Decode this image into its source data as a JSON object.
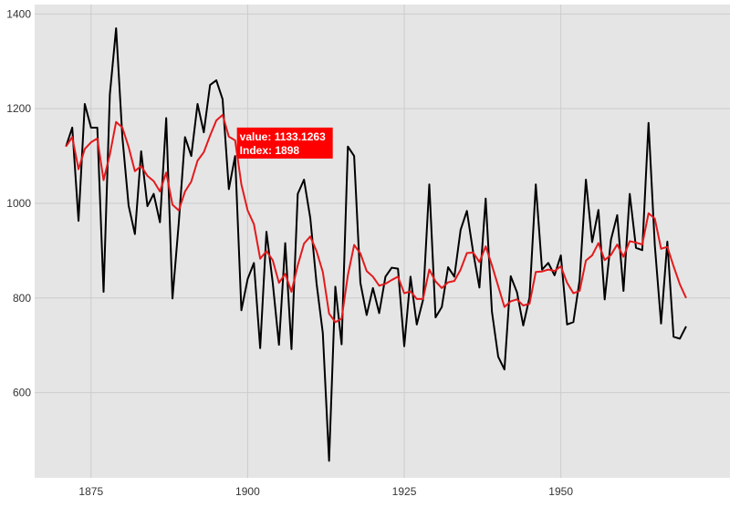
{
  "chart_data": {
    "type": "line",
    "title": "",
    "xlabel": "",
    "ylabel": "",
    "xlim": [
      1866,
      1977
    ],
    "ylim": [
      420,
      1420
    ],
    "x_ticks": [
      1875,
      1900,
      1925,
      1950
    ],
    "y_ticks": [
      600,
      800,
      1000,
      1200,
      1400
    ],
    "x_tick_labels": [
      "1875",
      "1900",
      "1925",
      "1950"
    ],
    "y_tick_labels": [
      "600",
      "800",
      "1000",
      "1200",
      "1400"
    ],
    "grid": true,
    "series": [
      {
        "color": "#000000",
        "x": [
          1871,
          1872,
          1873,
          1874,
          1875,
          1876,
          1877,
          1878,
          1879,
          1880,
          1881,
          1882,
          1883,
          1884,
          1885,
          1886,
          1887,
          1888,
          1889,
          1890,
          1891,
          1892,
          1893,
          1894,
          1895,
          1896,
          1897,
          1898,
          1899,
          1900,
          1901,
          1902,
          1903,
          1904,
          1905,
          1906,
          1907,
          1908,
          1909,
          1910,
          1911,
          1912,
          1913,
          1914,
          1915,
          1916,
          1917,
          1918,
          1919,
          1920,
          1921,
          1922,
          1923,
          1924,
          1925,
          1926,
          1927,
          1928,
          1929,
          1930,
          1931,
          1932,
          1933,
          1934,
          1935,
          1936,
          1937,
          1938,
          1939,
          1940,
          1941,
          1942,
          1943,
          1944,
          1945,
          1946,
          1947,
          1948,
          1949,
          1950,
          1951,
          1952,
          1953,
          1954,
          1955,
          1956,
          1957,
          1958,
          1959,
          1960,
          1961,
          1962,
          1963,
          1964,
          1965,
          1966,
          1967,
          1968,
          1969,
          1970
        ],
        "values": [
          1120,
          1160,
          963,
          1210,
          1160,
          1160,
          813,
          1230,
          1370,
          1140,
          995,
          935,
          1110,
          994,
          1020,
          960,
          1180,
          799,
          958,
          1140,
          1100,
          1210,
          1150,
          1250,
          1260,
          1220,
          1030,
          1100,
          774,
          840,
          874,
          694,
          940,
          833,
          701,
          916,
          692,
          1020,
          1050,
          969,
          831,
          726,
          456,
          824,
          702,
          1120,
          1100,
          832,
          764,
          821,
          768,
          845,
          864,
          862,
          698,
          845,
          744,
          796,
          1040,
          759,
          781,
          865,
          845,
          944,
          984,
          897,
          822,
          1010,
          771,
          676,
          649,
          846,
          812,
          742,
          801,
          1040,
          860,
          874,
          848,
          890,
          744,
          749,
          838,
          1050,
          918,
          986,
          797,
          923,
          975,
          815,
          1020,
          906,
          901,
          1170,
          912,
          746,
          919,
          718,
          714,
          740
        ]
      },
      {
        "color": "#e31a1c",
        "x": [
          1871,
          1872,
          1873,
          1874,
          1875,
          1876,
          1877,
          1878,
          1879,
          1880,
          1881,
          1882,
          1883,
          1884,
          1885,
          1886,
          1887,
          1888,
          1889,
          1890,
          1891,
          1892,
          1893,
          1894,
          1895,
          1896,
          1897,
          1898,
          1899,
          1900,
          1901,
          1902,
          1903,
          1904,
          1905,
          1906,
          1907,
          1908,
          1909,
          1910,
          1911,
          1912,
          1913,
          1914,
          1915,
          1916,
          1917,
          1918,
          1919,
          1920,
          1921,
          1922,
          1923,
          1924,
          1925,
          1926,
          1927,
          1928,
          1929,
          1930,
          1931,
          1932,
          1933,
          1934,
          1935,
          1936,
          1937,
          1938,
          1939,
          1940,
          1941,
          1942,
          1943,
          1944,
          1945,
          1946,
          1947,
          1948,
          1949,
          1950,
          1951,
          1952,
          1953,
          1954,
          1955,
          1956,
          1957,
          1958,
          1959,
          1960,
          1961,
          1962,
          1963,
          1964,
          1965,
          1966,
          1967,
          1968,
          1969,
          1970
        ],
        "values": [
          1120,
          1140,
          1072,
          1115,
          1129,
          1137,
          1049,
          1103,
          1172,
          1160,
          1119,
          1068,
          1079,
          1058,
          1047,
          1025,
          1065,
          997,
          985,
          1025,
          1046,
          1090,
          1108,
          1143,
          1175,
          1187,
          1141,
          1133,
          1040,
          985,
          956,
          883,
          899,
          880,
          832,
          851,
          813,
          869,
          915,
          930,
          899,
          855,
          767,
          749,
          756,
          848,
          912,
          894,
          857,
          845,
          826,
          830,
          838,
          845,
          810,
          814,
          798,
          798,
          860,
          835,
          821,
          833,
          836,
          860,
          895,
          896,
          876,
          909,
          869,
          825,
          781,
          793,
          797,
          784,
          788,
          855,
          856,
          860,
          857,
          867,
          832,
          810,
          815,
          879,
          890,
          916,
          880,
          891,
          913,
          887,
          920,
          917,
          913,
          979,
          968,
          904,
          908,
          867,
          829,
          800
        ]
      }
    ],
    "tooltip": {
      "line1": "value: 1133.1263",
      "line2": "Index: 1898",
      "x": 1898,
      "y": 1133.1263
    }
  },
  "colors": {
    "panel_bg": "#e5e5e5",
    "grid": "#cccccc",
    "tooltip_bg": "#ff0000"
  }
}
